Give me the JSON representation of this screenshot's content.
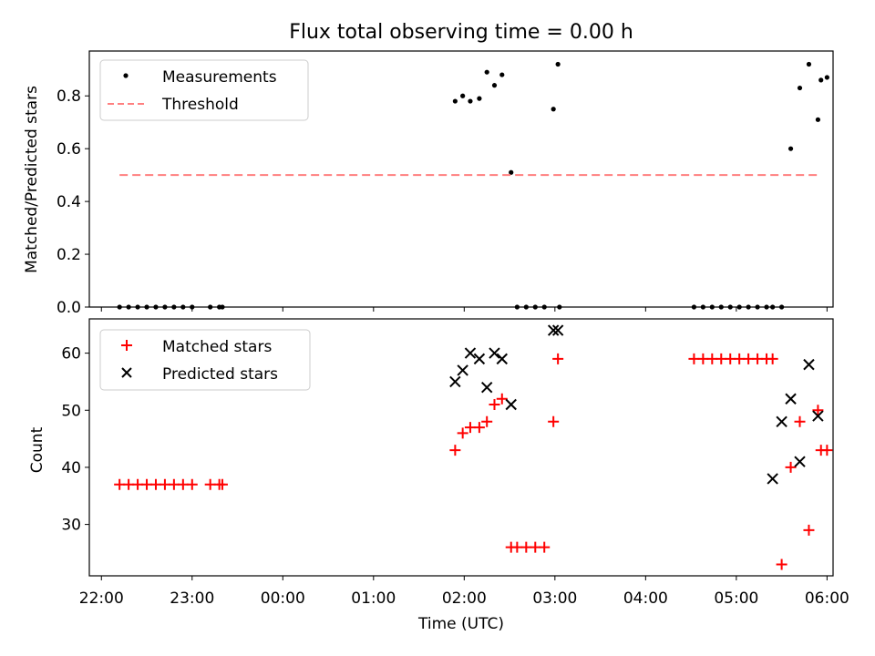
{
  "figure": {
    "title": "Flux total observing time = 0.00 h"
  },
  "chart_data": [
    {
      "type": "scatter",
      "ylabel": "Matched/Predicted stars",
      "xlabel": "",
      "xlim": [
        "21:52",
        "06:04"
      ],
      "ylim": [
        0,
        0.97
      ],
      "yticks": [
        0.0,
        0.2,
        0.4,
        0.6,
        0.8
      ],
      "ytick_labels": [
        "0.0",
        "0.2",
        "0.4",
        "0.6",
        "0.8"
      ],
      "xticks": [
        "22:00",
        "23:00",
        "00:00",
        "01:00",
        "02:00",
        "03:00",
        "04:00",
        "05:00",
        "06:00"
      ],
      "grid": false,
      "legend": "top-left",
      "series": [
        {
          "name": "Measurements",
          "marker": "dot",
          "color": "#000000",
          "x": [
            "22:12",
            "22:18",
            "22:24",
            "22:30",
            "22:36",
            "22:42",
            "22:48",
            "22:54",
            "23:00",
            "23:12",
            "23:18",
            "23:20",
            "01:54",
            "01:59",
            "02:04",
            "02:10",
            "02:15",
            "02:20",
            "02:25",
            "02:31",
            "02:35",
            "02:41",
            "02:47",
            "02:53",
            "02:59",
            "03:02",
            "03:03",
            "04:32",
            "04:38",
            "04:44",
            "04:50",
            "04:56",
            "05:02",
            "05:08",
            "05:14",
            "05:20",
            "05:24",
            "05:30",
            "05:36",
            "05:42",
            "05:48",
            "05:54",
            "05:56",
            "06:00"
          ],
          "y": [
            0,
            0,
            0,
            0,
            0,
            0,
            0,
            0,
            0,
            0,
            0,
            0,
            0.78,
            0.8,
            0.78,
            0.79,
            0.89,
            0.84,
            0.88,
            0.51,
            0,
            0,
            0,
            0,
            0.75,
            0.92,
            0,
            0,
            0,
            0,
            0,
            0,
            0,
            0,
            0,
            0,
            0,
            0,
            0.6,
            0.83,
            0.92,
            0.71,
            0.86,
            0.87
          ]
        },
        {
          "name": "Threshold",
          "type": "line",
          "style": "dashed",
          "color": "#ff7f7f",
          "x": [
            "22:12",
            "05:56"
          ],
          "y": [
            0.5,
            0.5
          ]
        }
      ]
    },
    {
      "type": "scatter",
      "ylabel": "Count",
      "xlabel": "Time (UTC)",
      "xlim": [
        "21:52",
        "06:04"
      ],
      "ylim": [
        21,
        66
      ],
      "yticks": [
        30,
        40,
        50,
        60
      ],
      "ytick_labels": [
        "30",
        "40",
        "50",
        "60"
      ],
      "xticks": [
        "22:00",
        "23:00",
        "00:00",
        "01:00",
        "02:00",
        "03:00",
        "04:00",
        "05:00",
        "06:00"
      ],
      "xtick_labels": [
        "22:00",
        "23:00",
        "00:00",
        "01:00",
        "02:00",
        "03:00",
        "04:00",
        "05:00",
        "06:00"
      ],
      "grid": false,
      "legend": "top-left",
      "series": [
        {
          "name": "Matched stars",
          "marker": "plus",
          "color": "#ff0000",
          "x": [
            "22:12",
            "22:18",
            "22:24",
            "22:30",
            "22:36",
            "22:42",
            "22:48",
            "22:54",
            "23:00",
            "23:12",
            "23:18",
            "23:20",
            "01:54",
            "01:59",
            "02:04",
            "02:10",
            "02:15",
            "02:20",
            "02:25",
            "02:31",
            "02:35",
            "02:41",
            "02:47",
            "02:53",
            "02:59",
            "03:02",
            "04:32",
            "04:38",
            "04:44",
            "04:50",
            "04:56",
            "05:02",
            "05:08",
            "05:14",
            "05:20",
            "05:24",
            "05:30",
            "05:36",
            "05:42",
            "05:48",
            "05:54",
            "05:56",
            "06:00"
          ],
          "y": [
            37,
            37,
            37,
            37,
            37,
            37,
            37,
            37,
            37,
            37,
            37,
            37,
            43,
            46,
            47,
            47,
            48,
            51,
            52,
            26,
            26,
            26,
            26,
            26,
            48,
            59,
            59,
            59,
            59,
            59,
            59,
            59,
            59,
            59,
            59,
            59,
            23,
            40,
            48,
            29,
            50,
            43,
            43
          ]
        },
        {
          "name": "Predicted stars",
          "marker": "x",
          "color": "#000000",
          "x": [
            "01:54",
            "01:59",
            "02:04",
            "02:10",
            "02:15",
            "02:20",
            "02:25",
            "02:31",
            "02:59",
            "03:02",
            "05:24",
            "05:30",
            "05:36",
            "05:42",
            "05:48",
            "05:54"
          ],
          "y": [
            55,
            57,
            60,
            59,
            54,
            60,
            59,
            51,
            64,
            64,
            38,
            48,
            52,
            41,
            58,
            49
          ]
        }
      ]
    }
  ]
}
